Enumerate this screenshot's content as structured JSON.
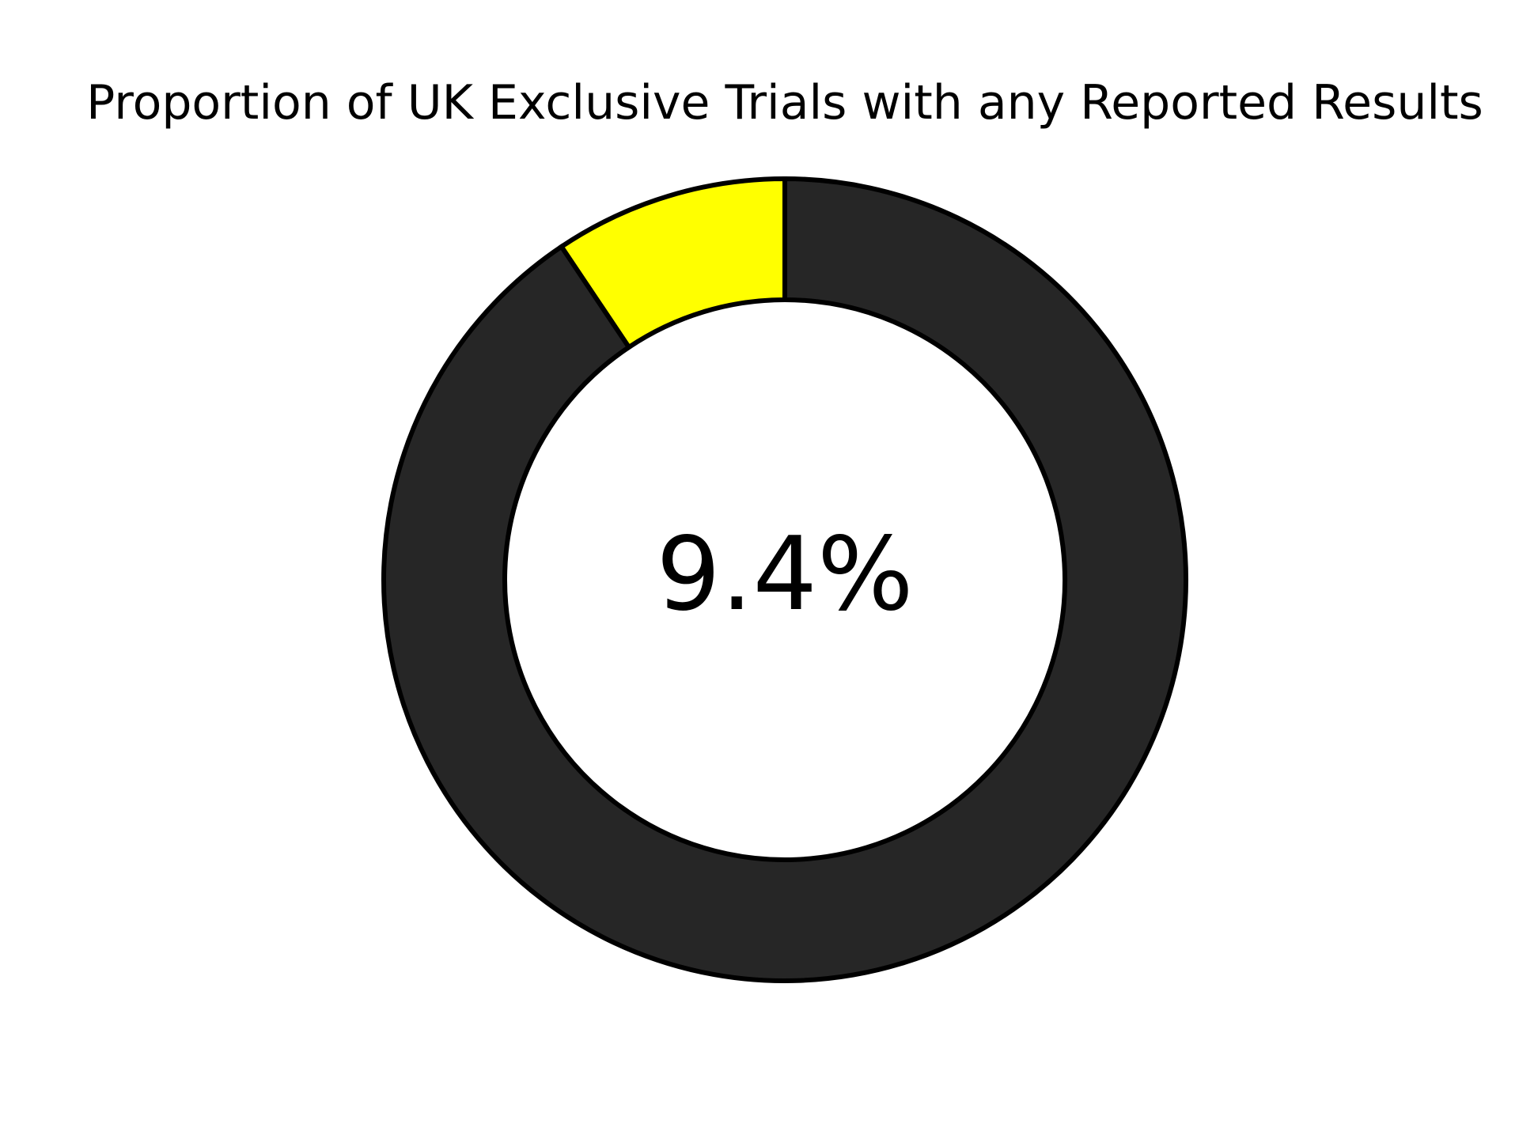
{
  "chart_data": {
    "type": "pie",
    "title": "Proportion of UK Exclusive Trials with any Reported Results",
    "center_label": "9.4%",
    "donut": true,
    "start": "top",
    "direction": "counterclockwise",
    "slices": [
      {
        "value": 9.4,
        "color": "#ffff00"
      },
      {
        "value": 90.6,
        "color": "#262626"
      }
    ],
    "edge_color": "#000000"
  }
}
